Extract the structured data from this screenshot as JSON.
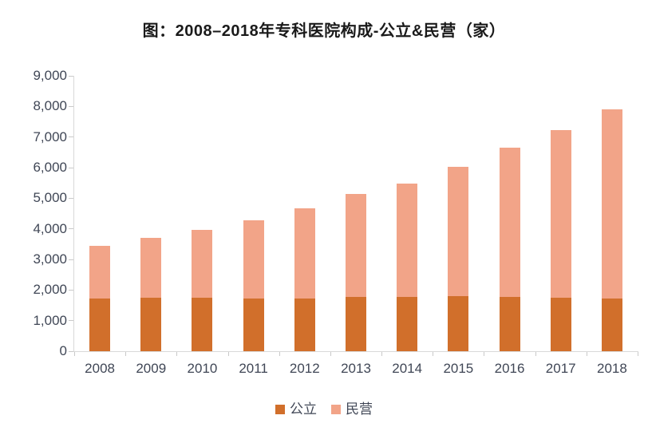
{
  "title": "图：2008–2018年专科医院构成-公立&民营（家）",
  "chart_data": {
    "type": "bar",
    "stacked": true,
    "title": "图：2008–2018年专科医院构成-公立&民营（家）",
    "categories": [
      "2008",
      "2009",
      "2010",
      "2011",
      "2012",
      "2013",
      "2014",
      "2015",
      "2016",
      "2017",
      "2018"
    ],
    "series": [
      {
        "name": "公立",
        "color": "#D16F2B",
        "values": [
          1720,
          1760,
          1750,
          1710,
          1730,
          1780,
          1780,
          1790,
          1780,
          1747,
          1733
        ]
      },
      {
        "name": "民营",
        "color": "#F2A488",
        "values": [
          1717,
          1956,
          2206,
          2573,
          2935,
          3347,
          3698,
          4233,
          4862,
          5473,
          6167
        ]
      }
    ],
    "totals": [
      3437,
      3716,
      3956,
      4283,
      4665,
      5127,
      5478,
      6023,
      6642,
      7220,
      7900
    ],
    "xlabel": "",
    "ylabel": "",
    "ylim": [
      0,
      9000
    ],
    "ytick_step": 1000,
    "ytick_labels": [
      "0",
      "1,000",
      "2,000",
      "3,000",
      "4,000",
      "5,000",
      "6,000",
      "7,000",
      "8,000",
      "9,000"
    ],
    "grid": false,
    "legend_position": "bottom"
  },
  "colors": {
    "axis_line": "#d9d9d9",
    "tick": "#c9c9c9",
    "axis_label": "#404756",
    "title": "#1a1a1a",
    "background": "#ffffff"
  }
}
